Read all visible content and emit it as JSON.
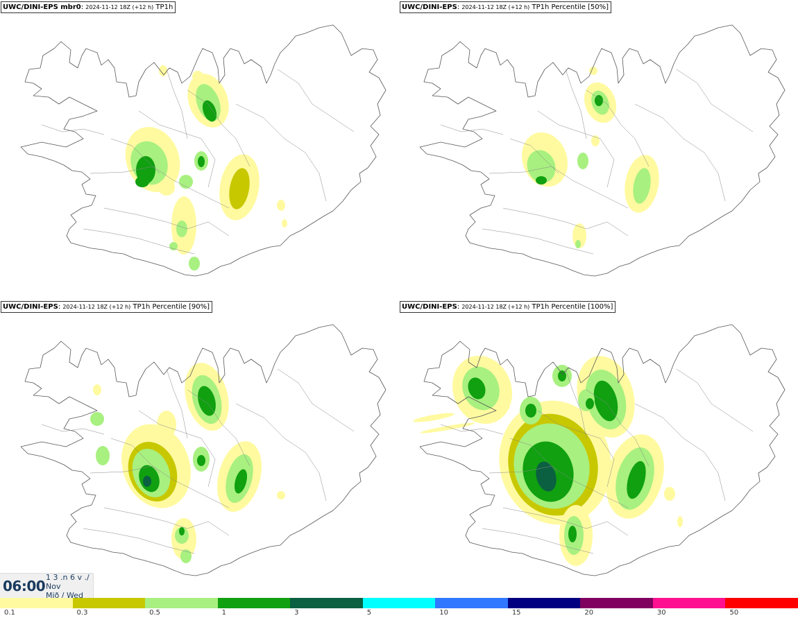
{
  "panels": [
    {
      "model": "UWC/DINI-EPS mbr0",
      "date": "2024-11-12 18Z (+12 h)",
      "field": "TP1h"
    },
    {
      "model": "UWC/DINI-EPS",
      "date": "2024-11-12 18Z (+12 h)",
      "field": "TP1h Percentile [50%]"
    },
    {
      "model": "UWC/DINI-EPS",
      "date": "2024-11-12 18Z (+12 h)",
      "field": "TP1h Percentile [90%]"
    },
    {
      "model": "UWC/DINI-EPS",
      "date": "2024-11-12 18Z (+12 h)",
      "field": "TP1h Percentile [100%]"
    }
  ],
  "valid_time": {
    "time": "06:00",
    "day_line1": "1 3 .n 6 v ./",
    "day_line2": "Nov",
    "day_line3": "Mið / Wed"
  },
  "legend": {
    "colors": [
      "#fffaa0",
      "#c8c800",
      "#a8f080",
      "#10a010",
      "#0a6040",
      "#00ffff",
      "#3078ff",
      "#000080",
      "#800060",
      "#ff1090",
      "#ff0000"
    ],
    "ticks": [
      "0.1",
      "0.3",
      "0.5",
      "1",
      "3",
      "5",
      "10",
      "15",
      "20",
      "30",
      "50"
    ]
  }
}
